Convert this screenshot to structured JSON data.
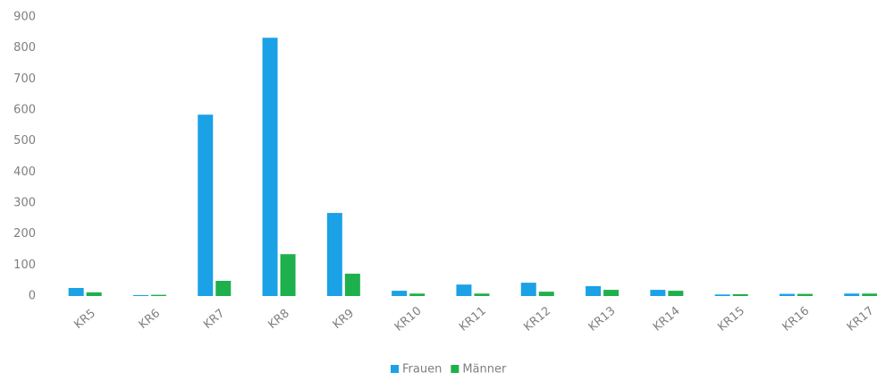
{
  "chart_data": {
    "type": "bar",
    "categories": [
      "KR5",
      "KR6",
      "KR7",
      "KR8",
      "KR9",
      "KR10",
      "KR11",
      "KR12",
      "KR13",
      "KR14",
      "KR15",
      "KR16",
      "KR17"
    ],
    "series": [
      {
        "name": "Frauen",
        "color": "#1ba1e6",
        "values": [
          26,
          3,
          585,
          833,
          268,
          17,
          37,
          43,
          32,
          20,
          5,
          7,
          8
        ]
      },
      {
        "name": "Männer",
        "color": "#1eb04c",
        "values": [
          12,
          4,
          49,
          135,
          72,
          8,
          8,
          14,
          20,
          17,
          6,
          7,
          8
        ]
      }
    ],
    "ylim": [
      0,
      900
    ],
    "yticks": [
      0,
      100,
      200,
      300,
      400,
      500,
      600,
      700,
      800,
      900
    ],
    "grid": false,
    "legend": "bottom"
  }
}
